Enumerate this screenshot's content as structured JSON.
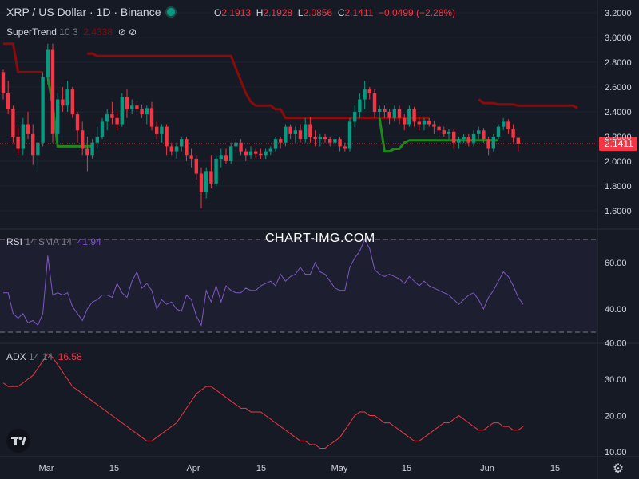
{
  "header": {
    "title": "XRP / US Dollar · 1D · Binance",
    "ohlc": [
      {
        "k": "O",
        "v": "2.1913"
      },
      {
        "k": "H",
        "v": "2.1928"
      },
      {
        "k": "L",
        "v": "2.0856"
      },
      {
        "k": "C",
        "v": "2.1411"
      }
    ],
    "change": "−0.0499 (−2.28%)"
  },
  "supertrend": {
    "name": "SuperTrend",
    "params": "10 3",
    "value": "2.4338",
    "icons": [
      "eye-off-icon",
      "eye-off-icon"
    ]
  },
  "rsi": {
    "name": "RSI",
    "params": "14 SMA 14",
    "value": "41.94"
  },
  "adx": {
    "name": "ADX",
    "params": "14 14",
    "value": "16.58"
  },
  "watermark": "CHART-IMG.COM",
  "price_label": "2.1411",
  "colors": {
    "up": "#089981",
    "down": "#f23645",
    "supertrend_up": "#1b8a1b",
    "supertrend_down": "#8b0a0a",
    "rsi": "#7e57c2",
    "adx": "#f23645"
  },
  "chart_data": [
    {
      "type": "candlestick",
      "title": "XRP / US Dollar · 1D · Binance",
      "x_ticks": [
        "Mar",
        "15",
        "Apr",
        "15",
        "May",
        "15",
        "Jun",
        "15"
      ],
      "y_ticks": [
        "3.2000",
        "3.0000",
        "2.8000",
        "2.6000",
        "2.4000",
        "2.2000",
        "2.0000",
        "1.8000",
        "1.6000"
      ],
      "ylim": [
        1.5,
        3.2
      ],
      "candles": [
        [
          2.72,
          2.74,
          2.5,
          2.55
        ],
        [
          2.55,
          2.65,
          2.38,
          2.42
        ],
        [
          2.42,
          2.45,
          2.15,
          2.2
        ],
        [
          2.2,
          2.28,
          2.05,
          2.1
        ],
        [
          2.1,
          2.35,
          2.05,
          2.3
        ],
        [
          2.3,
          2.4,
          2.18,
          2.22
        ],
        [
          2.22,
          2.3,
          1.97,
          2.05
        ],
        [
          2.05,
          2.18,
          1.92,
          2.15
        ],
        [
          2.15,
          2.72,
          2.12,
          2.68
        ],
        [
          2.68,
          2.95,
          2.62,
          2.9
        ],
        [
          2.9,
          2.95,
          2.15,
          2.22
        ],
        [
          2.22,
          2.55,
          2.15,
          2.5
        ],
        [
          2.5,
          2.6,
          2.4,
          2.45
        ],
        [
          2.45,
          2.65,
          2.4,
          2.58
        ],
        [
          2.58,
          2.6,
          2.35,
          2.38
        ],
        [
          2.38,
          2.4,
          2.15,
          2.25
        ],
        [
          2.25,
          2.32,
          2.05,
          2.1
        ],
        [
          2.1,
          2.2,
          1.92,
          2.05
        ],
        [
          2.05,
          2.18,
          2.02,
          2.15
        ],
        [
          2.15,
          2.28,
          2.1,
          2.2
        ],
        [
          2.2,
          2.35,
          2.18,
          2.32
        ],
        [
          2.32,
          2.42,
          2.25,
          2.38
        ],
        [
          2.38,
          2.48,
          2.3,
          2.35
        ],
        [
          2.35,
          2.4,
          2.25,
          2.3
        ],
        [
          2.3,
          2.55,
          2.28,
          2.52
        ],
        [
          2.52,
          2.58,
          2.35,
          2.42
        ],
        [
          2.42,
          2.5,
          2.38,
          2.45
        ],
        [
          2.45,
          2.48,
          2.4,
          2.42
        ],
        [
          2.42,
          2.46,
          2.35,
          2.38
        ],
        [
          2.38,
          2.45,
          2.3,
          2.43
        ],
        [
          2.43,
          2.48,
          2.25,
          2.28
        ],
        [
          2.28,
          2.32,
          2.18,
          2.22
        ],
        [
          2.22,
          2.3,
          2.15,
          2.28
        ],
        [
          2.28,
          2.3,
          2.05,
          2.12
        ],
        [
          2.12,
          2.15,
          2.05,
          2.08
        ],
        [
          2.08,
          2.15,
          2.02,
          2.12
        ],
        [
          2.12,
          2.2,
          2.08,
          2.18
        ],
        [
          2.18,
          2.2,
          2.0,
          2.05
        ],
        [
          2.05,
          2.1,
          1.95,
          2.02
        ],
        [
          2.02,
          2.05,
          1.85,
          1.9
        ],
        [
          1.9,
          1.95,
          1.62,
          1.75
        ],
        [
          1.75,
          1.95,
          1.7,
          1.92
        ],
        [
          1.92,
          2.05,
          1.78,
          1.82
        ],
        [
          1.82,
          2.05,
          1.8,
          2.02
        ],
        [
          2.02,
          2.1,
          1.95,
          2.05
        ],
        [
          2.05,
          2.1,
          1.98,
          2.0
        ],
        [
          2.0,
          2.15,
          1.98,
          2.12
        ],
        [
          2.12,
          2.18,
          2.08,
          2.15
        ],
        [
          2.15,
          2.18,
          2.05,
          2.08
        ],
        [
          2.08,
          2.1,
          2.0,
          2.05
        ],
        [
          2.05,
          2.12,
          2.02,
          2.08
        ],
        [
          2.08,
          2.1,
          2.03,
          2.06
        ],
        [
          2.06,
          2.1,
          2.02,
          2.05
        ],
        [
          2.05,
          2.1,
          2.02,
          2.08
        ],
        [
          2.08,
          2.12,
          2.05,
          2.1
        ],
        [
          2.1,
          2.2,
          2.08,
          2.18
        ],
        [
          2.18,
          2.2,
          2.1,
          2.15
        ],
        [
          2.15,
          2.3,
          2.12,
          2.28
        ],
        [
          2.28,
          2.3,
          2.18,
          2.22
        ],
        [
          2.22,
          2.28,
          2.15,
          2.25
        ],
        [
          2.25,
          2.3,
          2.15,
          2.18
        ],
        [
          2.18,
          2.35,
          2.15,
          2.3
        ],
        [
          2.3,
          2.36,
          2.15,
          2.2
        ],
        [
          2.2,
          2.25,
          2.12,
          2.18
        ],
        [
          2.18,
          2.22,
          2.12,
          2.2
        ],
        [
          2.2,
          2.22,
          2.15,
          2.18
        ],
        [
          2.18,
          2.2,
          2.12,
          2.15
        ],
        [
          2.15,
          2.2,
          2.1,
          2.18
        ],
        [
          2.18,
          2.2,
          2.08,
          2.12
        ],
        [
          2.12,
          2.15,
          2.08,
          2.1
        ],
        [
          2.1,
          2.35,
          2.08,
          2.32
        ],
        [
          2.32,
          2.45,
          2.28,
          2.4
        ],
        [
          2.4,
          2.55,
          2.35,
          2.5
        ],
        [
          2.5,
          2.65,
          2.42,
          2.58
        ],
        [
          2.58,
          2.6,
          2.5,
          2.55
        ],
        [
          2.55,
          2.58,
          2.35,
          2.4
        ],
        [
          2.4,
          2.45,
          2.32,
          2.42
        ],
        [
          2.42,
          2.45,
          2.35,
          2.4
        ],
        [
          2.4,
          2.42,
          2.3,
          2.35
        ],
        [
          2.35,
          2.45,
          2.32,
          2.42
        ],
        [
          2.42,
          2.45,
          2.3,
          2.35
        ],
        [
          2.35,
          2.38,
          2.25,
          2.3
        ],
        [
          2.3,
          2.45,
          2.28,
          2.42
        ],
        [
          2.42,
          2.44,
          2.28,
          2.32
        ],
        [
          2.32,
          2.36,
          2.25,
          2.3
        ],
        [
          2.3,
          2.35,
          2.25,
          2.33
        ],
        [
          2.33,
          2.35,
          2.28,
          2.3
        ],
        [
          2.3,
          2.33,
          2.22,
          2.28
        ],
        [
          2.28,
          2.3,
          2.2,
          2.25
        ],
        [
          2.25,
          2.28,
          2.2,
          2.22
        ],
        [
          2.22,
          2.26,
          2.18,
          2.24
        ],
        [
          2.24,
          2.26,
          2.1,
          2.15
        ],
        [
          2.15,
          2.2,
          2.1,
          2.18
        ],
        [
          2.18,
          2.22,
          2.15,
          2.2
        ],
        [
          2.2,
          2.22,
          2.12,
          2.15
        ],
        [
          2.15,
          2.25,
          2.12,
          2.22
        ],
        [
          2.22,
          2.28,
          2.18,
          2.25
        ],
        [
          2.25,
          2.27,
          2.15,
          2.18
        ],
        [
          2.18,
          2.2,
          2.05,
          2.1
        ],
        [
          2.1,
          2.22,
          2.08,
          2.2
        ],
        [
          2.2,
          2.3,
          2.18,
          2.28
        ],
        [
          2.28,
          2.35,
          2.25,
          2.32
        ],
        [
          2.32,
          2.34,
          2.22,
          2.26
        ],
        [
          2.26,
          2.3,
          2.15,
          2.19
        ],
        [
          2.19,
          2.19,
          2.08,
          2.14
        ]
      ],
      "supertrend_down_1": [
        2.95,
        2.95,
        2.95,
        2.72,
        2.72,
        2.72,
        2.72,
        2.72,
        2.72
      ],
      "supertrend_up_1": [
        2.68,
        2.45,
        2.12,
        2.12,
        2.12,
        2.12,
        2.12,
        2.12,
        2.12,
        2.12
      ],
      "supertrend_down_2": [
        2.87,
        2.87,
        2.85,
        2.85,
        2.85,
        2.85,
        2.85,
        2.85,
        2.85,
        2.85,
        2.85,
        2.85,
        2.85,
        2.85,
        2.85,
        2.85,
        2.85,
        2.85,
        2.85,
        2.85,
        2.85,
        2.85,
        2.85,
        2.85,
        2.85,
        2.85,
        2.85,
        2.85,
        2.85,
        2.85,
        2.75,
        2.65,
        2.55,
        2.48,
        2.45,
        2.45,
        2.45,
        2.45,
        2.42,
        2.42,
        2.35,
        2.35,
        2.35,
        2.35,
        2.35,
        2.35,
        2.35,
        2.35,
        2.35,
        2.35,
        2.35,
        2.35,
        2.35,
        2.35,
        2.35,
        2.35,
        2.35,
        2.35,
        2.35,
        2.35,
        2.35,
        2.35,
        2.35,
        2.35,
        2.35,
        2.35,
        2.35,
        2.35,
        2.35,
        2.35
      ],
      "supertrend_up_2": [
        2.35,
        2.08,
        2.08,
        2.1,
        2.1,
        2.15,
        2.17,
        2.17,
        2.17,
        2.17,
        2.17,
        2.17,
        2.17,
        2.17,
        2.17,
        2.17,
        2.17,
        2.17,
        2.17,
        2.17,
        2.17,
        2.17,
        2.17,
        2.17,
        2.17
      ],
      "supertrend_down_3": [
        2.5,
        2.47,
        2.47,
        2.47,
        2.46,
        2.46,
        2.46,
        2.46,
        2.45,
        2.45,
        2.45,
        2.45,
        2.45,
        2.45,
        2.45,
        2.45,
        2.45,
        2.45,
        2.45,
        2.45,
        2.43
      ]
    },
    {
      "type": "line",
      "name": "RSI",
      "y_ticks": [
        "60.00",
        "40.00"
      ],
      "bands": [
        30,
        70
      ],
      "ylim": [
        26,
        74
      ],
      "values": [
        47,
        47,
        38,
        36,
        38,
        34,
        35,
        33,
        38,
        63,
        46,
        47,
        46,
        47,
        41,
        38,
        35,
        40,
        43,
        44,
        46,
        46,
        45,
        51,
        47,
        45,
        52,
        56,
        49,
        51,
        48,
        40,
        44,
        42,
        43,
        40,
        39,
        46,
        44,
        37,
        33,
        48,
        43,
        50,
        43,
        50,
        48,
        47,
        47,
        49,
        48,
        48,
        50,
        51,
        52,
        50,
        55,
        52,
        54,
        55,
        58,
        55,
        55,
        60,
        56,
        55,
        52,
        49,
        48,
        48,
        58,
        62,
        65,
        70,
        66,
        57,
        55,
        54,
        55,
        54,
        53,
        51,
        54,
        52,
        50,
        52,
        50,
        49,
        48,
        47,
        46,
        44,
        42,
        44,
        46,
        47,
        44,
        40,
        45,
        48,
        52,
        56,
        54,
        50,
        45,
        42
      ]
    },
    {
      "type": "line",
      "name": "ADX",
      "y_ticks": [
        "40.00",
        "30.00",
        "20.00",
        "10.00"
      ],
      "ylim": [
        8,
        42
      ],
      "values": [
        29,
        28,
        28,
        28,
        29,
        30,
        31,
        33,
        35,
        37,
        36,
        34,
        32,
        30,
        28,
        27,
        26,
        25,
        24,
        23,
        22,
        21,
        20,
        19,
        18,
        17,
        16,
        15,
        14,
        13,
        13,
        14,
        15,
        16,
        17,
        18,
        20,
        22,
        24,
        26,
        27,
        28,
        28,
        27,
        26,
        25,
        24,
        23,
        22,
        22,
        21,
        21,
        21,
        20,
        19,
        18,
        17,
        16,
        15,
        14,
        13,
        13,
        12,
        12,
        11,
        11,
        12,
        13,
        14,
        16,
        18,
        20,
        21,
        21,
        20,
        20,
        19,
        18,
        18,
        17,
        16,
        15,
        14,
        13,
        13,
        14,
        15,
        16,
        17,
        18,
        18,
        19,
        20,
        19,
        18,
        17,
        16,
        16,
        17,
        18,
        18,
        17,
        17,
        16,
        16,
        17
      ]
    }
  ]
}
